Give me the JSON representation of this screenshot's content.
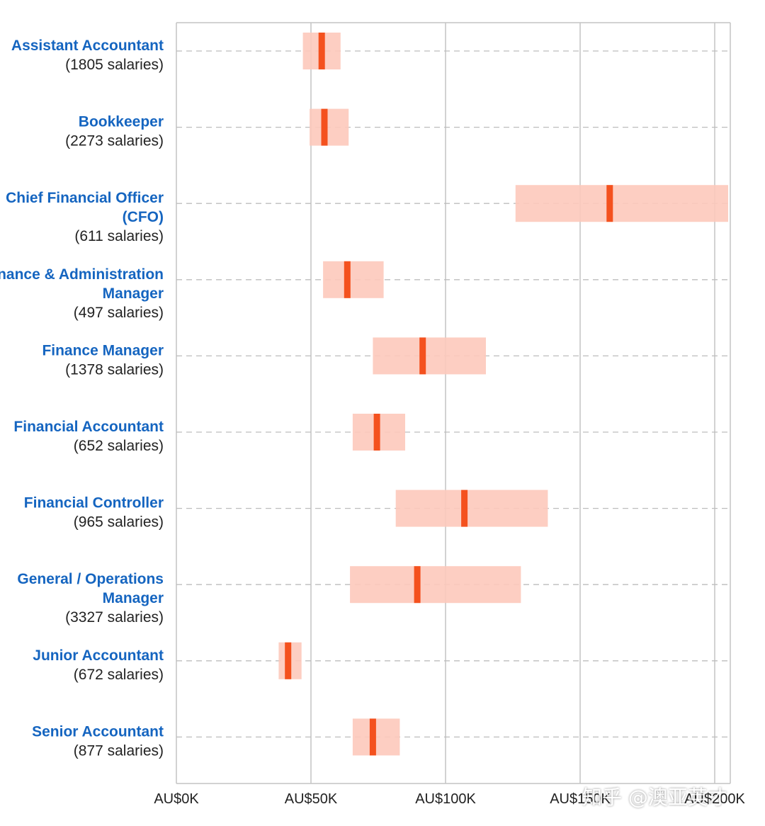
{
  "chart_data": {
    "type": "range",
    "title": "",
    "xlabel": "",
    "ylabel": "",
    "xlim": [
      0,
      205000
    ],
    "x_ticks": [
      {
        "value": 0,
        "label": "AU$0K"
      },
      {
        "value": 50000,
        "label": "AU$50K"
      },
      {
        "value": 100000,
        "label": "AU$100K"
      },
      {
        "value": 150000,
        "label": "AU$150K"
      },
      {
        "value": 200000,
        "label": "AU$200K"
      }
    ],
    "rows": [
      {
        "name_lines": [
          "Assistant Accountant"
        ],
        "count": "(1805 salaries)",
        "low": 47000,
        "median": 54000,
        "high": 61000
      },
      {
        "name_lines": [
          "Bookkeeper"
        ],
        "count": "(2273 salaries)",
        "low": 49500,
        "median": 55000,
        "high": 64000
      },
      {
        "name_lines": [
          "Chief Financial Officer",
          "(CFO)"
        ],
        "count": "(611 salaries)",
        "low": 126000,
        "median": 161000,
        "high": 205000
      },
      {
        "name_lines": [
          "Finance & Administration",
          "Manager"
        ],
        "count": "(497 salaries)",
        "low": 54500,
        "median": 63500,
        "high": 77000
      },
      {
        "name_lines": [
          "Finance Manager"
        ],
        "count": "(1378 salaries)",
        "low": 73000,
        "median": 91500,
        "high": 115000
      },
      {
        "name_lines": [
          "Financial Accountant"
        ],
        "count": "(652 salaries)",
        "low": 65500,
        "median": 74500,
        "high": 85000
      },
      {
        "name_lines": [
          "Financial Controller"
        ],
        "count": "(965 salaries)",
        "low": 81500,
        "median": 107000,
        "high": 138000
      },
      {
        "name_lines": [
          "General / Operations",
          "Manager"
        ],
        "count": "(3327 salaries)",
        "low": 64500,
        "median": 89500,
        "high": 128000
      },
      {
        "name_lines": [
          "Junior Accountant"
        ],
        "count": "(672 salaries)",
        "low": 38000,
        "median": 41500,
        "high": 46500
      },
      {
        "name_lines": [
          "Senior Accountant"
        ],
        "count": "(877 salaries)",
        "low": 65500,
        "median": 73000,
        "high": 83000
      }
    ]
  },
  "colors": {
    "range_fill": "#fdc9bb",
    "median": "#f4511e",
    "name_text": "#1565c0",
    "count_text": "#222222",
    "grid": "#c4c4c4",
    "row_line": "#bdbdbd"
  },
  "watermark": "知乎 @澳亚英才"
}
